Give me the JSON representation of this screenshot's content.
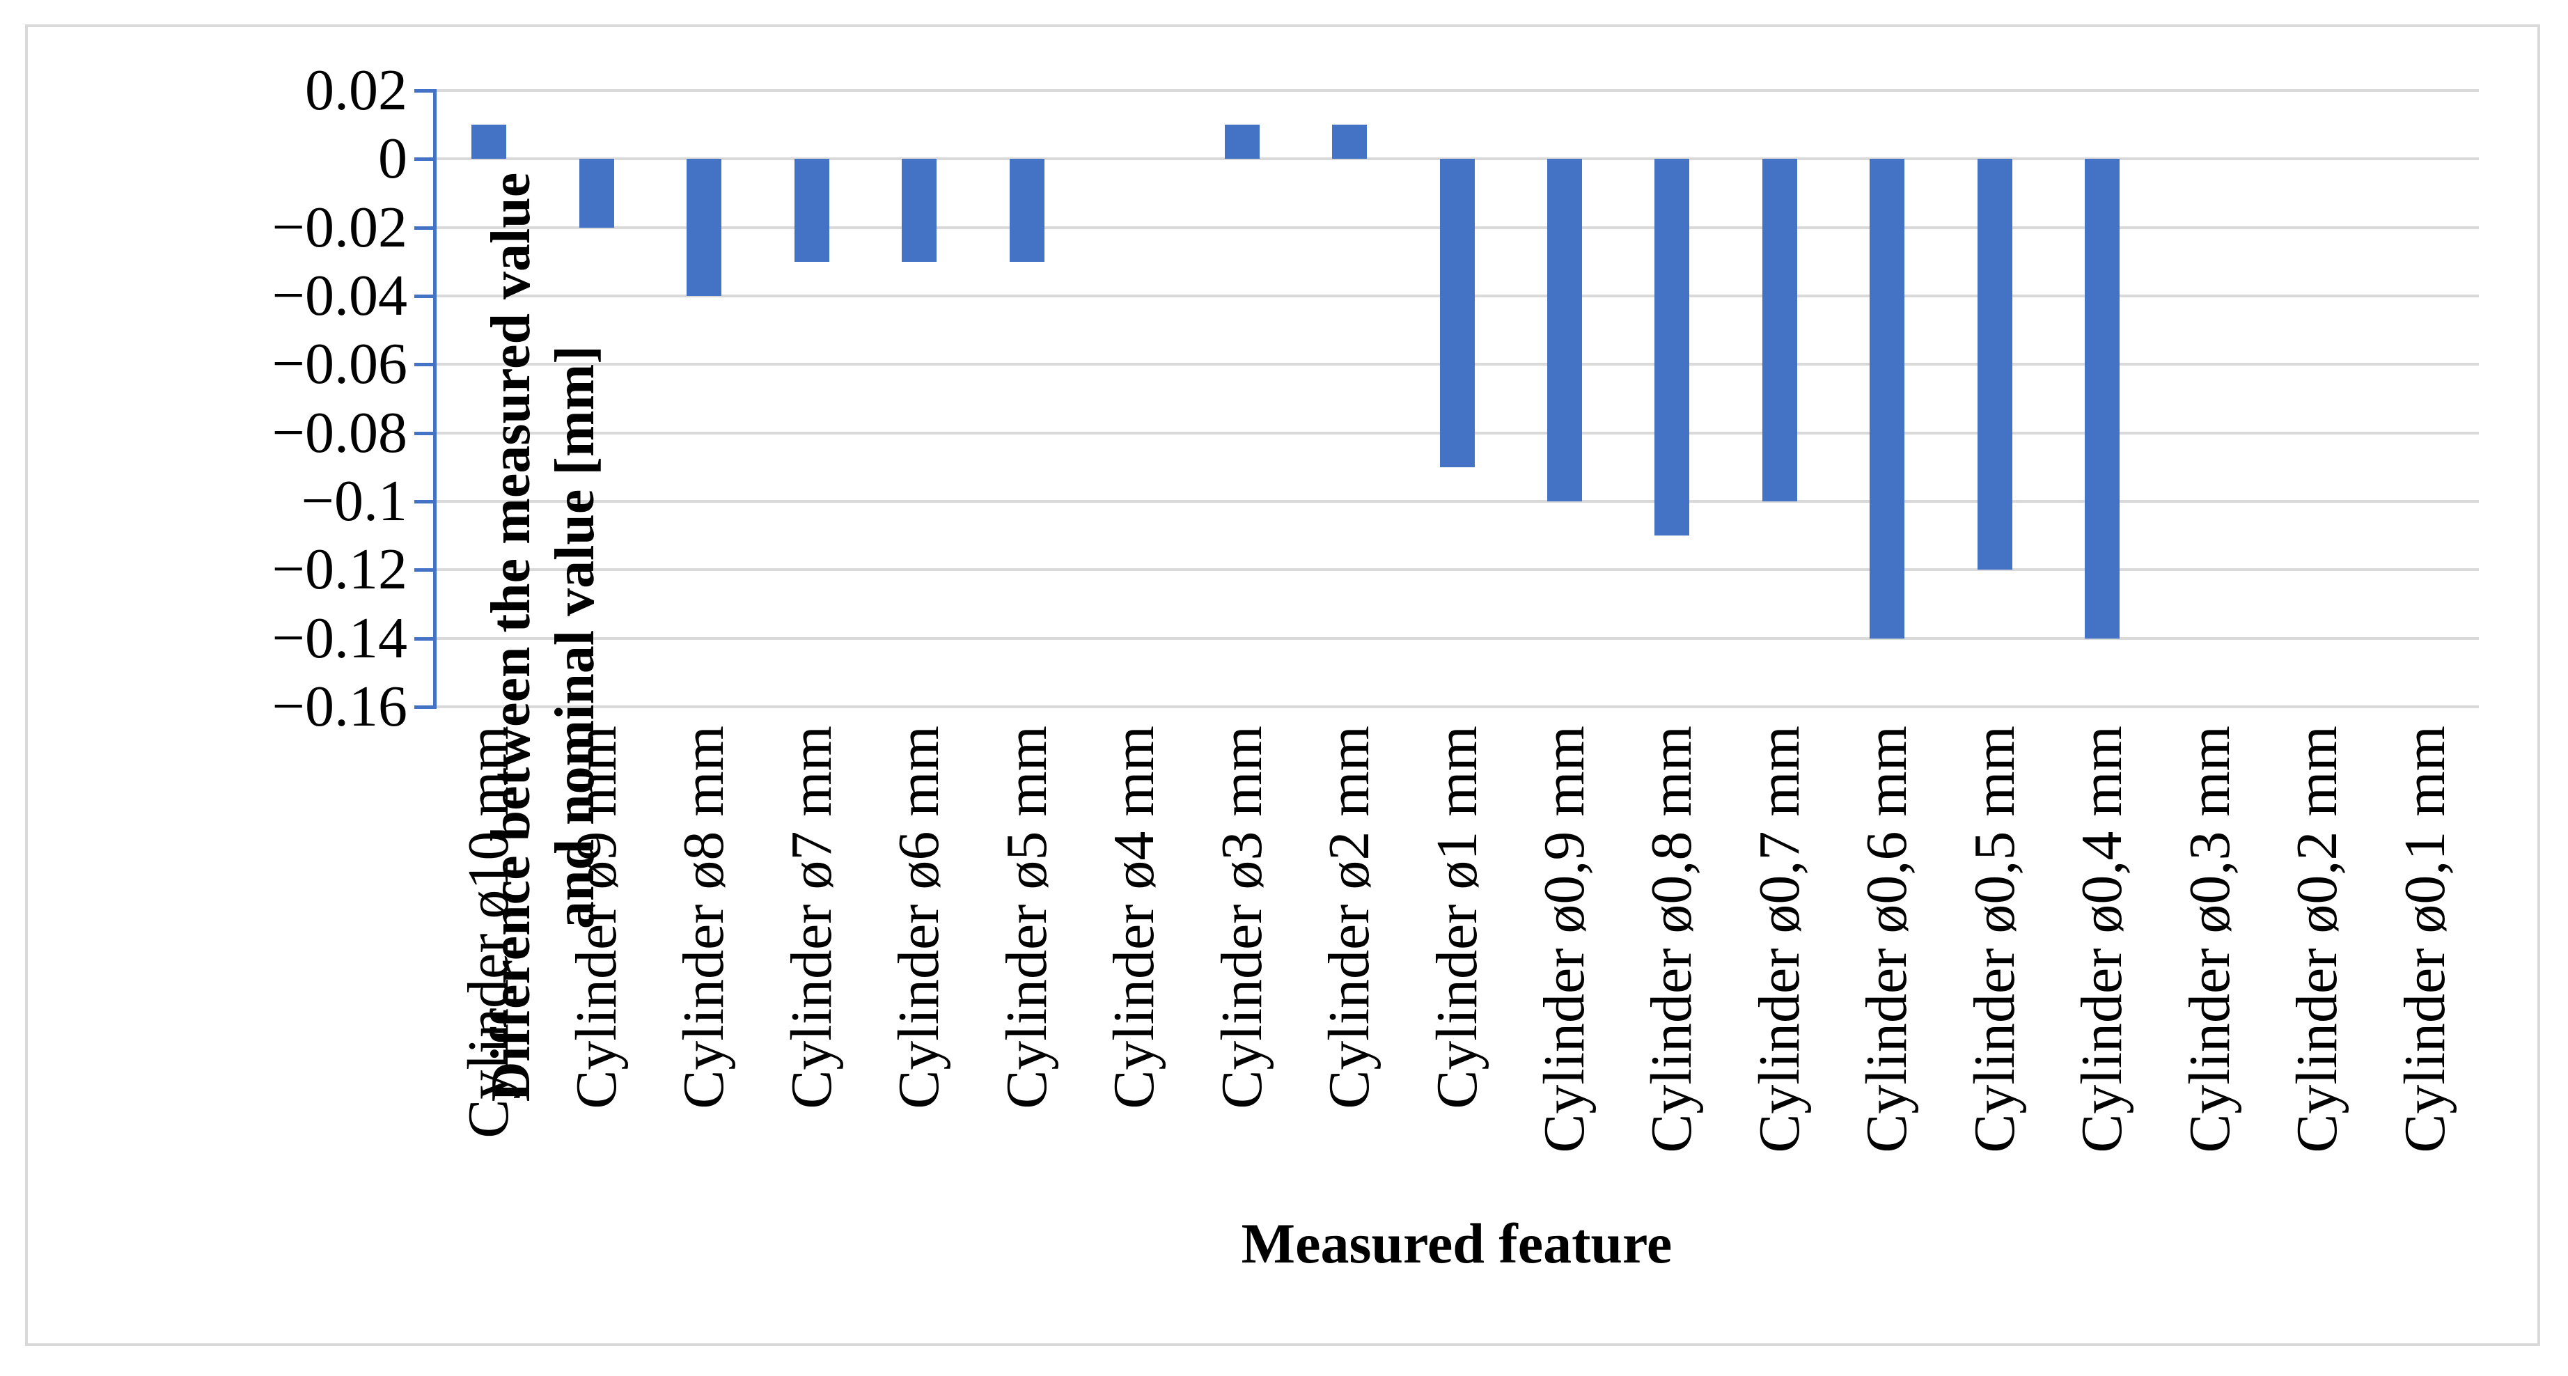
{
  "chart_data": {
    "type": "bar",
    "title": "",
    "xlabel": "Measured feature",
    "ylabel": "Difference between the measured value and nominal value [mm]",
    "ylabel_lines": [
      "Difference between the measured value",
      "and nominal value [mm]"
    ],
    "categories": [
      "Cylinder ø10 mm",
      "Cylinder ø9 mm",
      "Cylinder ø8 mm",
      "Cylinder ø7 mm",
      "Cylinder ø6 mm",
      "Cylinder ø5 mm",
      "Cylinder ø4 mm",
      "Cylinder ø3 mm",
      "Cylinder ø2 mm",
      "Cylinder ø1 mm",
      "Cylinder ø0,9 mm",
      "Cylinder ø0,8 mm",
      "Cylinder ø0,7 mm",
      "Cylinder ø0,6 mm",
      "Cylinder ø0,5 mm",
      "Cylinder ø0,4 mm",
      "Cylinder ø0,3 mm",
      "Cylinder ø0,2 mm",
      "Cylinder ø0,1 mm"
    ],
    "values": [
      0.01,
      -0.02,
      -0.04,
      -0.03,
      -0.03,
      -0.03,
      0,
      0.01,
      0.01,
      -0.09,
      -0.1,
      -0.11,
      -0.1,
      -0.14,
      -0.12,
      -0.14,
      0,
      0,
      0
    ],
    "unit": "mm",
    "ylim": [
      -0.16,
      0.02
    ],
    "ytick_values": [
      0.02,
      0,
      -0.02,
      -0.04,
      -0.06,
      -0.08,
      -0.1,
      -0.12,
      -0.14,
      -0.16
    ],
    "ytick_labels": [
      "0.02",
      "0",
      "−0.02",
      "−0.04",
      "−0.06",
      "−0.08",
      "−0.1",
      "−0.12",
      "−0.14",
      "−0.16"
    ],
    "grid": true,
    "legend": false,
    "bar_color": "#4472C4",
    "axis_color": "#4472C4",
    "gridline_color": "#D9D9D9",
    "border_color": "#D9D9D9",
    "text_color": "#000000"
  }
}
